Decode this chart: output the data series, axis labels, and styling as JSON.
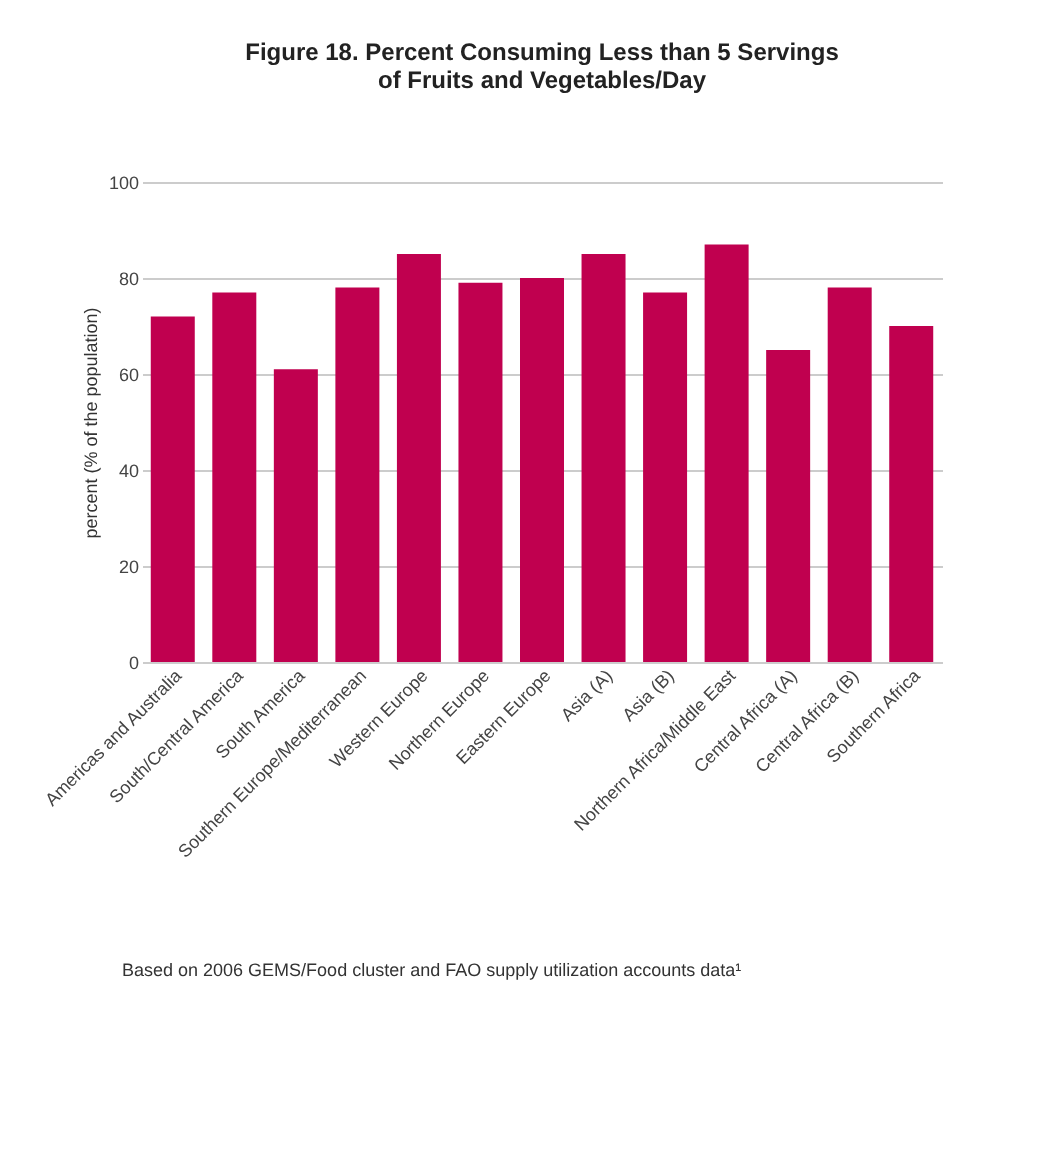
{
  "chart_data": {
    "type": "bar",
    "title": [
      "Figure 18. Percent Consuming Less than 5 Servings",
      "of Fruits and Vegetables/Day"
    ],
    "ylabel": "percent (% of the population)",
    "categories": [
      "Americas and Australia",
      "South/Central America",
      "South America",
      "Southern Europe/Mediterranean",
      "Western Europe",
      "Northern Europe",
      "Eastern Europe",
      "Asia (A)",
      "Asia (B)",
      "Northern Africa/Middle East",
      "Central Africa (A)",
      "Central Africa (B)",
      "Southern Africa"
    ],
    "values": [
      72,
      77,
      61,
      78,
      85,
      79,
      80,
      85,
      77,
      87,
      65,
      78,
      70
    ],
    "color": "#c0004f",
    "ylim": [
      0,
      100
    ],
    "yticks": [
      0,
      20,
      40,
      60,
      80,
      100
    ],
    "grid": "y",
    "annotations": [
      "Based on 2006 GEMS/Food cluster and FAO supply utilization accounts data¹"
    ]
  }
}
